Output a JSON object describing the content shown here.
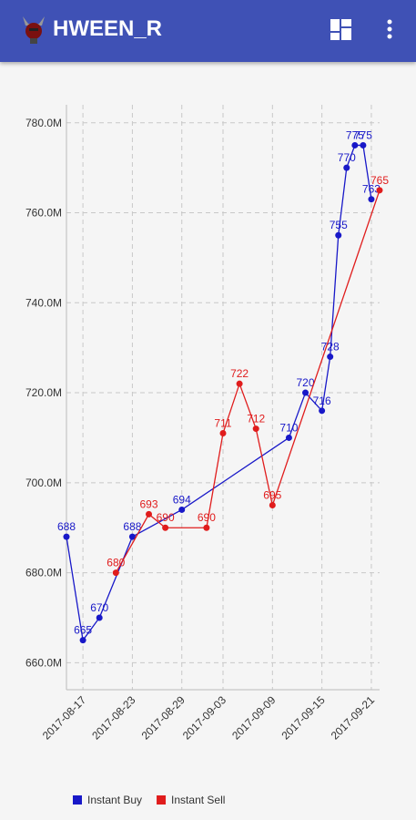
{
  "app_bar": {
    "title": "HWEEN_R"
  },
  "chart_data": {
    "type": "line",
    "series": [
      {
        "name": "Instant Buy",
        "color": "#1818c8",
        "x": [
          "2017-08-15",
          "2017-08-17",
          "2017-08-19",
          "2017-08-23",
          "2017-08-29",
          "2017-09-11",
          "2017-09-13",
          "2017-09-15",
          "2017-09-16",
          "2017-09-17",
          "2017-09-18",
          "2017-09-19",
          "2017-09-20",
          "2017-09-21"
        ],
        "values": [
          688,
          665,
          670,
          688,
          694,
          710,
          720,
          716,
          728,
          755,
          770,
          775,
          775,
          763
        ]
      },
      {
        "name": "Instant Sell",
        "color": "#e01c1c",
        "x": [
          "2017-08-21",
          "2017-08-25",
          "2017-08-27",
          "2017-09-01",
          "2017-09-03",
          "2017-09-05",
          "2017-09-07",
          "2017-09-09",
          "2017-09-22"
        ],
        "values": [
          680,
          693,
          690,
          690,
          711,
          722,
          712,
          695,
          765
        ]
      }
    ],
    "xlim": [
      "2017-08-15",
      "2017-09-22"
    ],
    "xticks": [
      "2017-08-17",
      "2017-08-23",
      "2017-08-29",
      "2017-09-03",
      "2017-09-09",
      "2017-09-15",
      "2017-09-21"
    ],
    "ylim": [
      654,
      784
    ],
    "yticks": [
      {
        "value": 660,
        "label": "660.0M"
      },
      {
        "value": 680,
        "label": "680.0M"
      },
      {
        "value": 700,
        "label": "700.0M"
      },
      {
        "value": 720,
        "label": "720.0M"
      },
      {
        "value": 740,
        "label": "740.0M"
      },
      {
        "value": 760,
        "label": "760.0M"
      },
      {
        "value": 780,
        "label": "780.0M"
      }
    ],
    "grid": true,
    "legend": "bottom-left"
  }
}
